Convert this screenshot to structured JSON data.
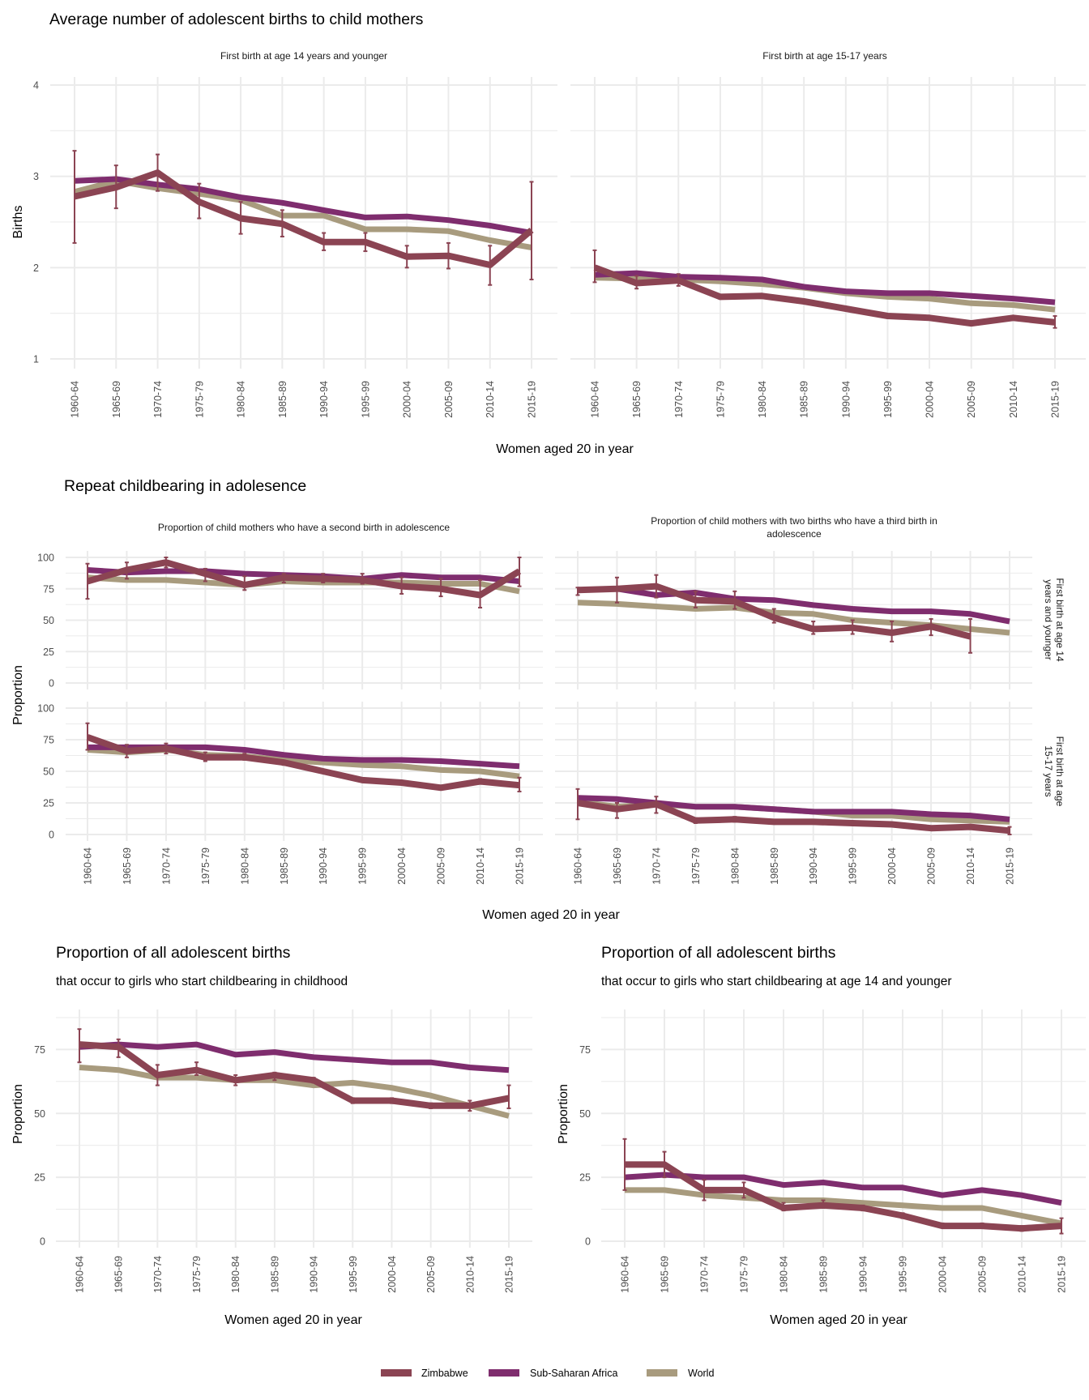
{
  "legend": {
    "items": [
      {
        "name": "Zimbabwe",
        "color": "#8B4453"
      },
      {
        "name": "Sub-Saharan Africa",
        "color": "#7F2D6E"
      },
      {
        "name": "World",
        "color": "#A89B7E"
      }
    ]
  },
  "sections": {
    "average_births": {
      "title": "Average number of adolescent births to child mothers",
      "xlabel": "Women aged 20 in year",
      "ylabel": "Births"
    },
    "repeat": {
      "title": "Repeat childbearing in adolesence",
      "xlabel": "Women aged 20 in year",
      "ylabel": "Proportion"
    },
    "proportion_childhood": {
      "title": "Proportion of all adolescent births",
      "subtitle": "that occur to girls who start childbearing in childhood",
      "xlabel": "Women aged 20 in year",
      "ylabel": "Proportion"
    },
    "proportion_14": {
      "title": "Proportion of all adolescent births",
      "subtitle": "that occur to girls who start childbearing at age 14 and younger",
      "xlabel": "Women aged 20 in year",
      "ylabel": "Proportion"
    }
  },
  "chart_data": [
    {
      "id": "p1",
      "type": "line",
      "section": "average_births",
      "title": "First birth at age 14 years and younger",
      "xlabel": "Women aged 20 in year",
      "ylabel": "Births",
      "ylim": [
        1,
        4
      ],
      "yticks": [
        1,
        2,
        3,
        4
      ],
      "categories": [
        "1960-64",
        "1965-69",
        "1970-74",
        "1975-79",
        "1980-84",
        "1985-89",
        "1990-94",
        "1995-99",
        "2000-04",
        "2005-09",
        "2010-14",
        "2015-19"
      ],
      "series": [
        {
          "name": "World",
          "values": [
            2.83,
            2.95,
            2.87,
            2.81,
            2.74,
            2.57,
            2.57,
            2.42,
            2.42,
            2.4,
            2.3,
            2.22
          ]
        },
        {
          "name": "Sub-Saharan Africa",
          "values": [
            2.95,
            2.97,
            2.91,
            2.86,
            2.77,
            2.71,
            2.63,
            2.55,
            2.56,
            2.52,
            2.46,
            2.38
          ]
        },
        {
          "name": "Zimbabwe",
          "values": [
            2.78,
            2.88,
            3.04,
            2.72,
            2.54,
            2.48,
            2.28,
            2.28,
            2.12,
            2.13,
            2.03,
            2.41
          ],
          "lower": [
            2.27,
            2.65,
            2.84,
            2.54,
            2.37,
            2.34,
            2.19,
            2.18,
            2.0,
            1.99,
            1.81,
            1.87
          ],
          "upper": [
            3.28,
            3.12,
            3.24,
            2.92,
            2.72,
            2.63,
            2.38,
            2.38,
            2.24,
            2.27,
            2.24,
            2.94
          ]
        }
      ]
    },
    {
      "id": "p2",
      "type": "line",
      "section": "average_births",
      "title": "First birth at age 15-17 years",
      "xlabel": "Women aged 20 in year",
      "ylabel": "Births",
      "ylim": [
        1,
        4
      ],
      "yticks": [
        1,
        2,
        3,
        4
      ],
      "categories": [
        "1960-64",
        "1965-69",
        "1970-74",
        "1975-79",
        "1980-84",
        "1985-89",
        "1990-94",
        "1995-99",
        "2000-04",
        "2005-09",
        "2010-14",
        "2015-19"
      ],
      "series": [
        {
          "name": "World",
          "values": [
            1.89,
            1.88,
            1.87,
            1.85,
            1.82,
            1.78,
            1.72,
            1.68,
            1.66,
            1.61,
            1.59,
            1.54
          ]
        },
        {
          "name": "Sub-Saharan Africa",
          "values": [
            1.92,
            1.94,
            1.9,
            1.89,
            1.87,
            1.79,
            1.74,
            1.72,
            1.72,
            1.69,
            1.66,
            1.62
          ]
        },
        {
          "name": "Zimbabwe",
          "values": [
            2.0,
            1.83,
            1.86,
            1.68,
            1.69,
            1.63,
            1.55,
            1.47,
            1.45,
            1.39,
            1.45,
            1.4
          ],
          "lower": [
            1.84,
            1.77,
            1.8,
            1.66,
            1.67,
            1.62,
            1.54,
            1.46,
            1.44,
            1.38,
            1.43,
            1.34
          ],
          "upper": [
            2.19,
            1.91,
            1.93,
            1.7,
            1.71,
            1.65,
            1.56,
            1.48,
            1.47,
            1.4,
            1.47,
            1.47
          ]
        }
      ]
    },
    {
      "id": "p3",
      "type": "line",
      "section": "repeat",
      "title": "Proportion of child mothers who have a second birth in adolescence",
      "row_label": "First birth at age 14 years and younger",
      "ylim": [
        0,
        100
      ],
      "yticks": [
        0,
        25,
        50,
        75,
        100
      ],
      "categories": [
        "1960-64",
        "1965-69",
        "1970-74",
        "1975-79",
        "1980-84",
        "1985-89",
        "1990-94",
        "1995-99",
        "2000-04",
        "2005-09",
        "2010-14",
        "2015-19"
      ],
      "series": [
        {
          "name": "World",
          "values": [
            84,
            82,
            82,
            80,
            78,
            81,
            80,
            80,
            80,
            79,
            79,
            73
          ]
        },
        {
          "name": "Sub-Saharan Africa",
          "values": [
            90,
            88,
            89,
            89,
            87,
            86,
            85,
            83,
            86,
            84,
            84,
            81
          ]
        },
        {
          "name": "Zimbabwe",
          "values": [
            81,
            90,
            96,
            87,
            78,
            84,
            83,
            82,
            77,
            75,
            70,
            89
          ],
          "lower": [
            67,
            83,
            92,
            81,
            74,
            80,
            80,
            79,
            71,
            69,
            60,
            77
          ],
          "upper": [
            95,
            96,
            100,
            91,
            85,
            87,
            87,
            87,
            84,
            83,
            82,
            100
          ]
        }
      ]
    },
    {
      "id": "p4",
      "type": "line",
      "section": "repeat",
      "title": "Proportion of child mothers with two births who have a third birth in adolescence",
      "row_label": "First birth at age 14 years and younger",
      "ylim": [
        0,
        100
      ],
      "yticks": [
        0,
        25,
        50,
        75,
        100
      ],
      "categories": [
        "1960-64",
        "1965-69",
        "1970-74",
        "1975-79",
        "1980-84",
        "1985-89",
        "1990-94",
        "1995-99",
        "2000-04",
        "2005-09",
        "2010-14",
        "2015-19"
      ],
      "series": [
        {
          "name": "World",
          "values": [
            64,
            63,
            61,
            59,
            60,
            56,
            55,
            50,
            48,
            46,
            43,
            40
          ]
        },
        {
          "name": "Sub-Saharan Africa",
          "values": [
            74,
            75,
            70,
            72,
            67,
            66,
            62,
            59,
            57,
            57,
            55,
            49
          ]
        },
        {
          "name": "Zimbabwe",
          "values": [
            74,
            75,
            77,
            66,
            65,
            52,
            43,
            44,
            40,
            45,
            37,
            null
          ],
          "lower": [
            70,
            64,
            68,
            60,
            59,
            48,
            39,
            39,
            33,
            38,
            24,
            null
          ],
          "upper": [
            76,
            84,
            86,
            73,
            73,
            59,
            49,
            50,
            49,
            51,
            51,
            null
          ]
        }
      ]
    },
    {
      "id": "p5",
      "type": "line",
      "section": "repeat",
      "title": "Proportion of child mothers who have a second birth in adolescence",
      "row_label": "First birth at age 15-17 years",
      "ylim": [
        0,
        100
      ],
      "yticks": [
        0,
        25,
        50,
        75,
        100
      ],
      "categories": [
        "1960-64",
        "1965-69",
        "1970-74",
        "1975-79",
        "1980-84",
        "1985-89",
        "1990-94",
        "1995-99",
        "2000-04",
        "2005-09",
        "2010-14",
        "2015-19"
      ],
      "series": [
        {
          "name": "World",
          "values": [
            67,
            65,
            67,
            63,
            62,
            59,
            57,
            55,
            54,
            51,
            50,
            46
          ]
        },
        {
          "name": "Sub-Saharan Africa",
          "values": [
            69,
            69,
            69,
            69,
            67,
            63,
            60,
            59,
            59,
            58,
            56,
            54
          ]
        },
        {
          "name": "Zimbabwe",
          "values": [
            77,
            66,
            68,
            61,
            61,
            57,
            50,
            43,
            41,
            37,
            42,
            39
          ],
          "lower": [
            67,
            61,
            64,
            58,
            59,
            55,
            49,
            42,
            40,
            36,
            40,
            34
          ],
          "upper": [
            88,
            71,
            72,
            65,
            64,
            58,
            51,
            44,
            42,
            38,
            44,
            45
          ]
        }
      ]
    },
    {
      "id": "p6",
      "type": "line",
      "section": "repeat",
      "title": "Proportion of child mothers with two births who have a third birth in adolescence",
      "row_label": "First birth at age 15-17 years",
      "ylim": [
        0,
        100
      ],
      "yticks": [
        0,
        25,
        50,
        75,
        100
      ],
      "categories": [
        "1960-64",
        "1965-69",
        "1970-74",
        "1975-79",
        "1980-84",
        "1985-89",
        "1990-94",
        "1995-99",
        "2000-04",
        "2005-09",
        "2010-14",
        "2015-19"
      ],
      "series": [
        {
          "name": "World",
          "values": [
            26,
            22,
            24,
            22,
            22,
            20,
            18,
            15,
            15,
            12,
            11,
            10
          ]
        },
        {
          "name": "Sub-Saharan Africa",
          "values": [
            29,
            28,
            25,
            22,
            22,
            20,
            18,
            18,
            18,
            16,
            15,
            12
          ]
        },
        {
          "name": "Zimbabwe",
          "values": [
            25,
            20,
            24,
            11,
            12,
            10,
            10,
            9,
            8,
            5,
            6,
            3
          ],
          "lower": [
            12,
            13,
            17,
            9,
            10,
            9,
            9,
            8,
            7,
            4,
            5,
            0
          ],
          "upper": [
            36,
            25,
            30,
            13,
            14,
            11,
            11,
            10,
            9,
            6,
            7,
            6
          ]
        }
      ]
    },
    {
      "id": "p7",
      "type": "line",
      "section": "proportion_childhood",
      "title": "Proportion of all adolescent births",
      "subtitle": "that occur to girls who start childbearing in childhood",
      "xlabel": "Women aged 20 in year",
      "ylabel": "Proportion",
      "ylim": [
        0,
        90
      ],
      "yticks": [
        0,
        25,
        50,
        75
      ],
      "categories": [
        "1960-64",
        "1965-69",
        "1970-74",
        "1975-79",
        "1980-84",
        "1985-89",
        "1990-94",
        "1995-99",
        "2000-04",
        "2005-09",
        "2010-14",
        "2015-19"
      ],
      "series": [
        {
          "name": "World",
          "values": [
            68,
            67,
            64,
            64,
            63,
            63,
            61,
            62,
            60,
            57,
            53,
            49
          ]
        },
        {
          "name": "Sub-Saharan Africa",
          "values": [
            76,
            77,
            76,
            77,
            73,
            74,
            72,
            71,
            70,
            70,
            68,
            67
          ]
        },
        {
          "name": "Zimbabwe",
          "values": [
            77,
            76,
            65,
            67,
            63,
            65,
            63,
            55,
            55,
            53,
            53,
            56
          ],
          "lower": [
            70,
            72,
            61,
            65,
            61,
            63,
            62,
            54,
            54,
            52,
            51,
            52
          ],
          "upper": [
            83,
            79,
            69,
            70,
            65,
            66,
            64,
            56,
            56,
            54,
            55,
            61
          ]
        }
      ]
    },
    {
      "id": "p8",
      "type": "line",
      "section": "proportion_14",
      "title": "Proportion of all adolescent births",
      "subtitle": "that occur to girls who start childbearing at age 14 and younger",
      "xlabel": "Women aged 20 in year",
      "ylabel": "Proportion",
      "ylim": [
        0,
        90
      ],
      "yticks": [
        0,
        25,
        50,
        75
      ],
      "categories": [
        "1960-64",
        "1965-69",
        "1970-74",
        "1975-79",
        "1980-84",
        "1985-89",
        "1990-94",
        "1995-99",
        "2000-04",
        "2005-09",
        "2010-14",
        "2015-19"
      ],
      "series": [
        {
          "name": "World",
          "values": [
            20,
            20,
            18,
            17,
            16,
            16,
            15,
            14,
            13,
            13,
            10,
            7
          ]
        },
        {
          "name": "Sub-Saharan Africa",
          "values": [
            25,
            26,
            25,
            25,
            22,
            23,
            21,
            21,
            18,
            20,
            18,
            15
          ]
        },
        {
          "name": "Zimbabwe",
          "values": [
            30,
            30,
            20,
            20,
            13,
            14,
            13,
            10,
            6,
            6,
            5,
            6
          ],
          "lower": [
            20,
            25,
            16,
            17,
            12,
            13,
            12,
            9,
            6,
            6,
            4,
            3
          ],
          "upper": [
            40,
            35,
            24,
            23,
            15,
            16,
            14,
            11,
            7,
            7,
            6,
            9
          ]
        }
      ]
    }
  ]
}
